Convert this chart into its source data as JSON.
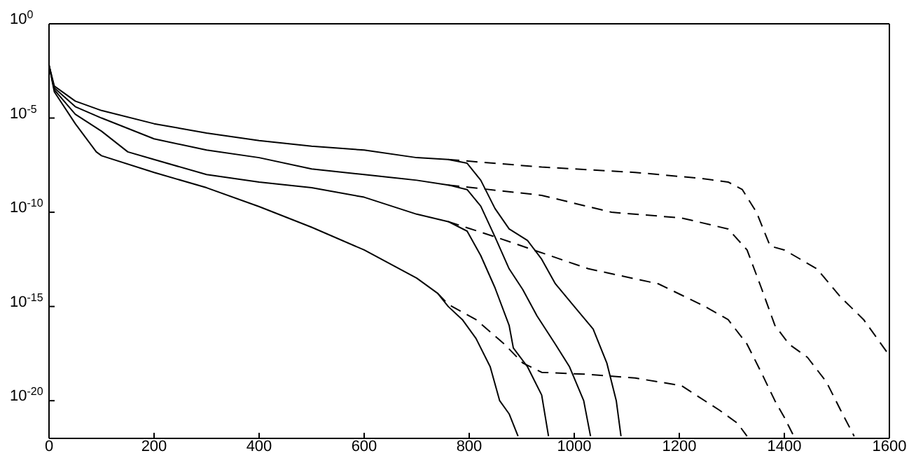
{
  "chart_data": {
    "type": "line",
    "log": "y",
    "xlim": [
      0,
      1600
    ],
    "xticks": [
      0,
      200,
      400,
      600,
      800,
      1000,
      1200,
      1400,
      1600
    ],
    "ylim": [
      1e-22,
      1
    ],
    "yticks": [
      {
        "value": 1,
        "label": "10$^{0}$"
      },
      {
        "value": 1e-05,
        "label": "10$^{-5}$"
      },
      {
        "value": 1e-10,
        "label": "10$^{-10}$"
      },
      {
        "value": 1e-15,
        "label": "10$^{-15}$"
      },
      {
        "value": 1e-20,
        "label": "10$^{-20}$"
      }
    ],
    "marker": "none",
    "series": [
      {
        "color": "#000000",
        "line_style": "solid",
        "x": [
          0,
          10,
          50,
          100,
          200,
          300,
          400,
          500,
          600,
          700,
          760,
          796,
          822,
          849,
          876,
          911,
          938,
          964,
          1000,
          1036,
          1062,
          1080,
          1089
        ],
        "values": [
          0.0063,
          0.0005,
          7.9e-05,
          2.5e-05,
          5e-06,
          1.6e-06,
          6.3e-07,
          3.2e-07,
          2e-07,
          7.9e-08,
          6.3e-08,
          4e-08,
          5e-09,
          1.6e-10,
          1.3e-11,
          3.2e-12,
          3.2e-13,
          1.6e-14,
          1e-15,
          6.3e-17,
          1e-18,
          1e-20,
          1.3e-22
        ]
      },
      {
        "color": "#000000",
        "line_style": "solid",
        "x": [
          0,
          10,
          50,
          100,
          200,
          300,
          400,
          500,
          600,
          700,
          760,
          796,
          822,
          849,
          876,
          902,
          929,
          964,
          991,
          1018,
          1031
        ],
        "values": [
          0.0063,
          0.0004,
          4e-05,
          1e-05,
          7.9e-07,
          2e-07,
          7.9e-08,
          2e-08,
          1e-08,
          5e-09,
          2.8e-09,
          1.6e-09,
          2.1e-10,
          5e-12,
          1e-13,
          7.9e-15,
          3.2e-16,
          1e-17,
          6.3e-19,
          1e-20,
          1.3e-22
        ]
      },
      {
        "color": "#000000",
        "line_style": "solid",
        "x": [
          0,
          10,
          50,
          100,
          150,
          200,
          300,
          400,
          500,
          600,
          700,
          760,
          796,
          822,
          849,
          876,
          884,
          911,
          938,
          951
        ],
        "values": [
          0.0063,
          0.00032,
          1.6e-05,
          2e-06,
          1.6e-07,
          6.3e-08,
          1e-08,
          4e-09,
          2e-09,
          6.3e-10,
          7.9e-11,
          3.2e-11,
          1e-11,
          5e-13,
          1e-14,
          1e-16,
          6.3e-18,
          6.3e-19,
          2e-20,
          1.3e-22
        ]
      },
      {
        "color": "#000000",
        "line_style": "solid",
        "x": [
          0,
          10,
          50,
          90,
          100,
          200,
          300,
          400,
          500,
          600,
          700,
          740,
          760,
          787,
          813,
          840,
          858,
          876,
          893
        ],
        "values": [
          0.0063,
          0.00025,
          5e-06,
          1.6e-07,
          1e-07,
          1.3e-08,
          2e-09,
          2e-10,
          1.6e-11,
          1e-12,
          3.2e-14,
          5e-15,
          1e-15,
          2e-16,
          2e-17,
          6.3e-19,
          1e-20,
          2e-21,
          1.3e-22
        ]
      },
      {
        "color": "#000000",
        "line_style": "dashed",
        "x": [
          760,
          938,
          1116,
          1240,
          1293,
          1320,
          1347,
          1373,
          1400,
          1462,
          1507,
          1551,
          1600
        ],
        "values": [
          6.3e-08,
          2.5e-08,
          1.3e-08,
          6.3e-09,
          4e-09,
          1.6e-09,
          1e-10,
          1.6e-12,
          1e-12,
          1e-13,
          3.2e-15,
          2e-16,
          2.5e-18
        ]
      },
      {
        "color": "#000000",
        "line_style": "dashed",
        "x": [
          760,
          938,
          1071,
          1204,
          1293,
          1329,
          1356,
          1382,
          1409,
          1444,
          1480,
          1507,
          1533
        ],
        "values": [
          2.8e-09,
          7.9e-10,
          1e-10,
          5e-11,
          1.3e-11,
          1e-12,
          1e-14,
          1e-16,
          1e-17,
          2e-18,
          1e-19,
          3.2e-21,
          1.3e-22
        ]
      },
      {
        "color": "#000000",
        "line_style": "dashed",
        "x": [
          760,
          849,
          1027,
          1160,
          1249,
          1293,
          1329,
          1356,
          1382,
          1400,
          1418
        ],
        "values": [
          3.2e-11,
          5e-12,
          1e-13,
          1.6e-14,
          1e-15,
          2e-16,
          1e-17,
          3.2e-19,
          1e-20,
          1.3e-21,
          1.3e-22
        ]
      },
      {
        "color": "#000000",
        "line_style": "dashed",
        "x": [
          740,
          760,
          813,
          867,
          902,
          938,
          1027,
          1116,
          1204,
          1276,
          1311,
          1329
        ],
        "values": [
          5e-15,
          1.3e-15,
          2e-16,
          1e-17,
          1e-18,
          3.2e-19,
          2.5e-19,
          1.6e-19,
          6.3e-20,
          3.2e-21,
          6.3e-22,
          1.3e-22
        ]
      }
    ]
  }
}
